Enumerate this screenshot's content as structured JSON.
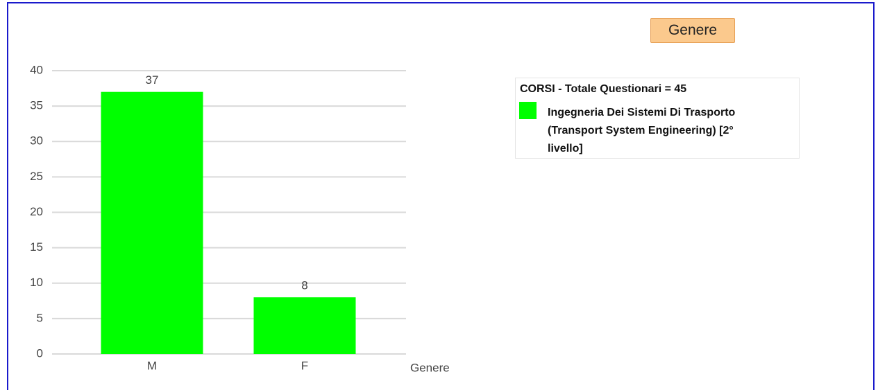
{
  "button": {
    "label": "Genere"
  },
  "chart_data": {
    "type": "bar",
    "categories": [
      "M",
      "F"
    ],
    "series": [
      {
        "name": "Ingegneria Dei Sistemi Di Trasporto (Transport System Engineering) [2° livello]",
        "color": "#00ff00",
        "values": [
          37,
          8
        ]
      }
    ],
    "legend_title": "CORSI - Totale Questionari = 45",
    "x_label": "Genere",
    "ylim": [
      0,
      40
    ],
    "yticks": [
      0,
      5,
      10,
      15,
      20,
      25,
      30,
      35,
      40
    ],
    "grid": true
  }
}
